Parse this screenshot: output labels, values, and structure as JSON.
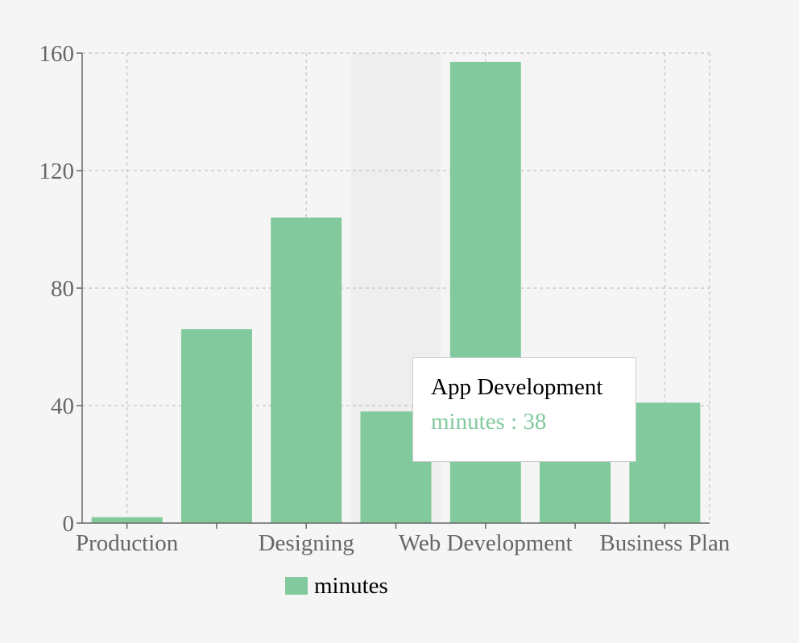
{
  "chart_data": {
    "type": "bar",
    "categories": [
      "Production",
      "",
      "Designing",
      "App Development",
      "Web Development",
      "",
      "Business Plan"
    ],
    "category_labels_shown": [
      "Production",
      "Designing",
      "Web Development",
      "Business Plan"
    ],
    "series": [
      {
        "name": "minutes",
        "values": [
          2,
          66,
          104,
          38,
          157,
          38,
          41
        ],
        "color": "#82ca9d"
      }
    ],
    "ylim": [
      0,
      160
    ],
    "yticks": [
      0,
      40,
      80,
      120,
      160
    ],
    "grid": true,
    "legend_placement": "bottom-center",
    "highlighted_category": "App Development"
  },
  "tooltip": {
    "label": "App Development",
    "series_name": "minutes",
    "separator": " : ",
    "value": "38"
  },
  "legend": {
    "label": "minutes"
  },
  "colors": {
    "bar": "#82ca9d",
    "grid": "#cccccc",
    "axis": "#666666",
    "cursor": "#eeeeee",
    "background": "#f5f5f5"
  }
}
